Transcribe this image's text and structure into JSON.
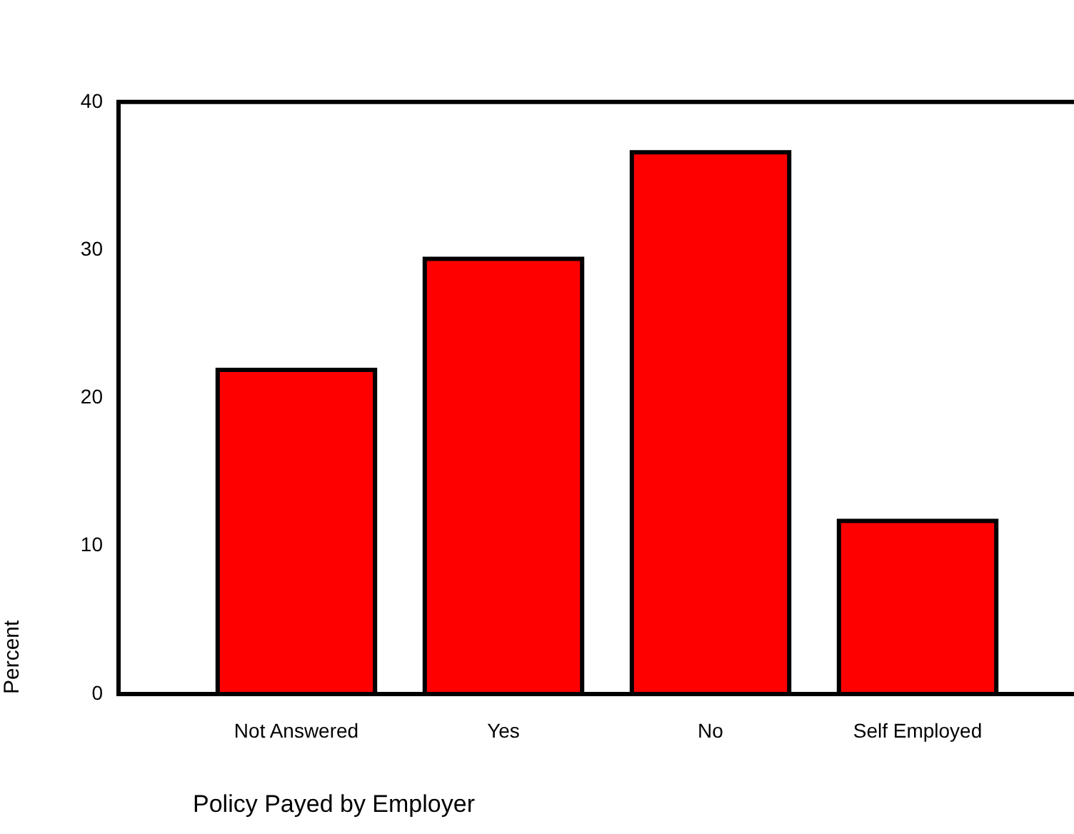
{
  "chart_data": {
    "type": "bar",
    "xlabel": "Policy Payed by Employer",
    "ylabel": "Percent",
    "categories": [
      "Not Answered",
      "Yes",
      "No",
      "Self Employed"
    ],
    "values": [
      21.9,
      29.4,
      36.6,
      11.7
    ],
    "color": "#ff0000",
    "ylim": [
      0,
      40
    ],
    "yticks": [
      0,
      10,
      20,
      30,
      40
    ],
    "grid": false,
    "legend": false
  }
}
